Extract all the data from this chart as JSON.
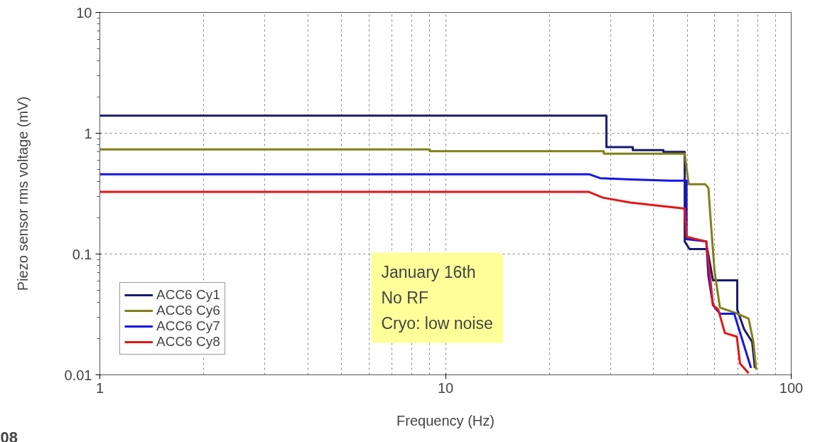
{
  "chart_data": {
    "type": "line",
    "xlabel": "Frequency (Hz)",
    "ylabel": "Piezo sensor rms voltage (mV)",
    "log": "xy",
    "xlim": [
      1,
      100
    ],
    "ylim": [
      0.01,
      10
    ],
    "xticks": [
      1,
      10,
      100
    ],
    "yticks": [
      0.01,
      0.1,
      1,
      10
    ],
    "grid": true,
    "legend": "bottom left",
    "line_style": "solid",
    "series": [
      {
        "name": "ACC6 Cy1",
        "color": "#1a1a6e",
        "x": [
          1,
          29.2,
          29.2,
          34.8,
          34.8,
          42.7,
          42.7,
          49.2,
          49.2,
          50.8,
          57.2,
          59.4,
          69.8,
          69.8,
          73.1,
          77.1,
          78.5
        ],
        "values": [
          1.4,
          1.4,
          0.767,
          0.767,
          0.725,
          0.725,
          0.7,
          0.7,
          0.127,
          0.11,
          0.11,
          0.0605,
          0.0605,
          0.0347,
          0.0238,
          0.0187,
          0.0114
        ]
      },
      {
        "name": "ACC6 Cy6",
        "color": "#808019",
        "x": [
          1,
          9.0,
          9.0,
          28.7,
          28.7,
          49.2,
          50.5,
          56.4,
          57.6,
          58.5,
          60.0,
          62.2,
          68.4,
          75.3,
          77.7,
          79.2
        ],
        "values": [
          0.736,
          0.736,
          0.711,
          0.711,
          0.677,
          0.677,
          0.378,
          0.378,
          0.353,
          0.188,
          0.0725,
          0.036,
          0.0329,
          0.0292,
          0.0188,
          0.011
        ]
      },
      {
        "name": "ACC6 Cy7",
        "color": "#1515e6",
        "x": [
          1,
          26,
          28,
          34.2,
          44.6,
          49.8,
          49.8,
          56.8,
          57.6,
          59.4,
          62.2,
          68.4,
          69.8,
          76.5
        ],
        "values": [
          0.458,
          0.458,
          0.425,
          0.415,
          0.405,
          0.405,
          0.133,
          0.127,
          0.066,
          0.0377,
          0.0321,
          0.0321,
          0.0266,
          0.0114
        ]
      },
      {
        "name": "ACC6 Cy8",
        "color": "#e61515",
        "x": [
          1,
          26,
          28.5,
          34.2,
          42.7,
          49.2,
          49.8,
          56.8,
          59.4,
          61.5,
          64.3,
          69.6,
          71.1,
          75.3
        ],
        "values": [
          0.327,
          0.327,
          0.293,
          0.267,
          0.249,
          0.238,
          0.139,
          0.127,
          0.0377,
          0.0347,
          0.0222,
          0.0207,
          0.0124,
          0.0103
        ]
      }
    ],
    "annotations": [
      "January 16th",
      "No RF",
      "Cryo: low noise",
      "08"
    ]
  }
}
